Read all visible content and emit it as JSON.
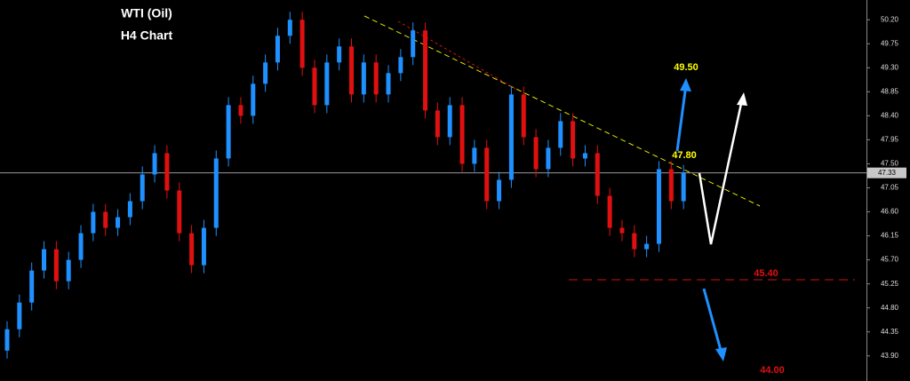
{
  "chart_data": {
    "type": "candlestick",
    "title": "WTI (Oil)",
    "subtitle": "H4 Chart",
    "open": [
      44.0,
      44.4,
      44.9,
      45.5,
      45.9,
      45.3,
      45.7,
      46.2,
      46.6,
      46.3,
      46.5,
      46.8,
      47.3,
      47.7,
      47.0,
      46.2,
      45.6,
      46.3,
      47.6,
      48.6,
      48.4,
      49.0,
      49.4,
      49.9,
      50.2,
      49.3,
      48.6,
      49.4,
      49.7,
      48.8,
      49.4,
      48.8,
      49.2,
      49.5,
      50.0,
      48.5,
      48.0,
      48.6,
      47.5,
      47.8,
      46.8,
      47.2,
      48.8,
      48.0,
      47.4,
      47.8,
      48.3,
      47.6,
      47.7,
      46.9,
      46.3,
      46.2,
      45.9,
      46.0,
      47.4,
      46.8
    ],
    "high": [
      44.55,
      45.05,
      45.65,
      46.05,
      46.05,
      45.85,
      46.35,
      46.75,
      46.75,
      46.65,
      46.95,
      47.45,
      47.85,
      47.85,
      47.15,
      46.35,
      46.45,
      47.75,
      48.75,
      48.75,
      49.15,
      49.55,
      50.05,
      50.35,
      50.35,
      49.45,
      49.55,
      49.85,
      49.85,
      49.55,
      49.55,
      49.35,
      49.65,
      50.15,
      50.15,
      48.65,
      48.75,
      48.75,
      47.95,
      47.95,
      47.35,
      48.95,
      48.95,
      48.15,
      47.95,
      48.45,
      48.45,
      47.85,
      47.85,
      47.05,
      46.45,
      46.35,
      46.15,
      47.55,
      47.55,
      47.48
    ],
    "low": [
      43.85,
      44.25,
      44.75,
      45.35,
      45.15,
      45.15,
      45.55,
      46.05,
      46.15,
      46.15,
      46.35,
      46.65,
      47.15,
      46.85,
      46.05,
      45.45,
      45.45,
      46.15,
      47.45,
      48.25,
      48.25,
      48.85,
      49.25,
      49.75,
      49.15,
      48.45,
      48.45,
      49.25,
      48.65,
      48.65,
      48.65,
      48.65,
      49.05,
      49.35,
      48.35,
      47.85,
      47.85,
      47.35,
      47.35,
      46.65,
      46.65,
      47.05,
      47.85,
      47.25,
      47.25,
      47.65,
      47.45,
      47.45,
      46.75,
      46.15,
      46.05,
      45.75,
      45.75,
      45.85,
      46.65,
      46.65
    ],
    "close": [
      44.4,
      44.9,
      45.5,
      45.9,
      45.3,
      45.7,
      46.2,
      46.6,
      46.3,
      46.5,
      46.8,
      47.3,
      47.7,
      47.0,
      46.2,
      45.6,
      46.3,
      47.6,
      48.6,
      48.4,
      49.0,
      49.4,
      49.9,
      50.2,
      49.3,
      48.6,
      49.4,
      49.7,
      48.8,
      49.4,
      48.8,
      49.2,
      49.5,
      50.0,
      48.5,
      48.0,
      48.6,
      47.5,
      47.8,
      46.8,
      47.2,
      48.8,
      48.0,
      47.4,
      47.8,
      48.3,
      47.6,
      47.7,
      46.9,
      46.3,
      46.2,
      45.9,
      46.0,
      47.4,
      46.8,
      47.33
    ],
    "up_color": "#1e90ff",
    "down_color": "#e01010",
    "last_price": 47.33,
    "ylim": [
      43.43,
      50.57
    ],
    "yticks": [
      {
        "value": 50.2,
        "label": "50.20"
      },
      {
        "value": 49.75,
        "label": "49.75"
      },
      {
        "value": 49.3,
        "label": "49.30"
      },
      {
        "value": 48.85,
        "label": "48.85"
      },
      {
        "value": 48.4,
        "label": "48.40"
      },
      {
        "value": 47.95,
        "label": "47.95"
      },
      {
        "value": 47.5,
        "label": "47.50"
      },
      {
        "value": 47.05,
        "label": "47.05"
      },
      {
        "value": 46.6,
        "label": "46.60"
      },
      {
        "value": 46.15,
        "label": "46.15"
      },
      {
        "value": 45.7,
        "label": "45.70"
      },
      {
        "value": 45.25,
        "label": "45.25"
      },
      {
        "value": 44.8,
        "label": "44.80"
      },
      {
        "value": 44.35,
        "label": "44.35"
      },
      {
        "value": 43.9,
        "label": "43.90"
      }
    ],
    "annotations": [
      "49.50",
      "47.80",
      "45.40",
      "44.00"
    ]
  }
}
